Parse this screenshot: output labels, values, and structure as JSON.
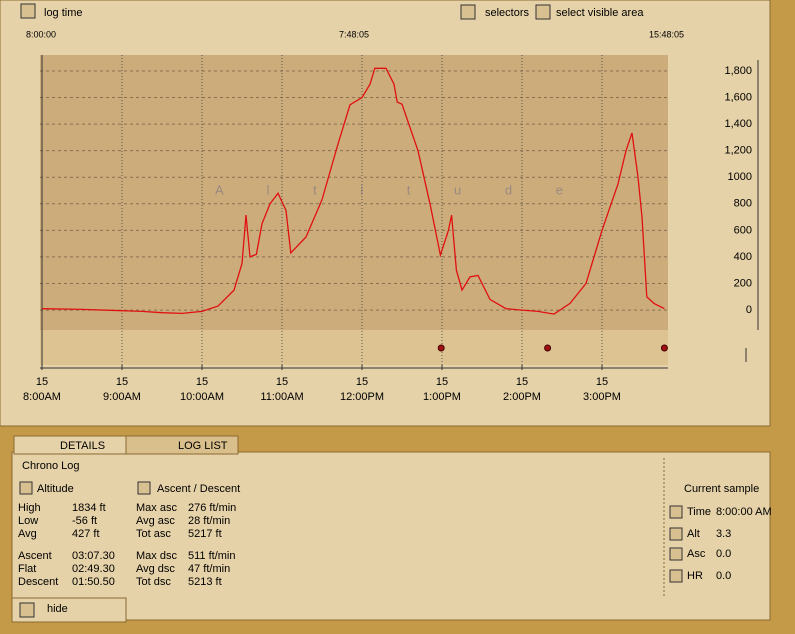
{
  "toolbar": {
    "log_time": "log time",
    "selectors": "selectors",
    "select_visible_area": "select visible area"
  },
  "timeline": {
    "start": "8:00:00",
    "duration": "7:48:05",
    "end": "15:48:05"
  },
  "chart_data": {
    "type": "line",
    "watermark": "A l t i t u d e",
    "color": "#e01010",
    "x": [
      8.0,
      8.5,
      9.0,
      9.25,
      9.5,
      9.75,
      10.0,
      10.2,
      10.4,
      10.5,
      10.55,
      10.6,
      10.68,
      10.75,
      10.85,
      10.95,
      11.05,
      11.11,
      11.3,
      11.5,
      11.7,
      11.85,
      12.0,
      12.1,
      12.16,
      12.3,
      12.4,
      12.44,
      12.5,
      12.7,
      12.85,
      12.98,
      13.08,
      13.12,
      13.18,
      13.25,
      13.35,
      13.45,
      13.6,
      13.8,
      14.0,
      14.2,
      14.4,
      14.6,
      14.8,
      15.0,
      15.2,
      15.3,
      15.375,
      15.45,
      15.5,
      15.56,
      15.65,
      15.78
    ],
    "values": [
      10,
      5,
      -5,
      -10,
      -20,
      -25,
      -10,
      30,
      150,
      350,
      715,
      400,
      420,
      650,
      800,
      880,
      750,
      430,
      550,
      830,
      1250,
      1545,
      1600,
      1700,
      1820,
      1820,
      1700,
      1566,
      1550,
      1200,
      800,
      414,
      600,
      715,
      300,
      150,
      250,
      260,
      80,
      10,
      0,
      -10,
      -30,
      50,
      200,
      600,
      950,
      1200,
      1333,
      1000,
      700,
      100,
      50,
      10
    ],
    "event_markers_x": [
      12.99,
      14.32,
      15.78
    ],
    "marker_color": "#a01010",
    "xlim": [
      8,
      15.8
    ],
    "ylim": [
      -150,
      1920
    ],
    "xticks": [
      {
        "value": 8,
        "label": "8:00AM"
      },
      {
        "value": 9,
        "label": "9:00AM"
      },
      {
        "value": 10,
        "label": "10:00AM"
      },
      {
        "value": 11,
        "label": "11:00AM"
      },
      {
        "value": 12,
        "label": "12:00PM"
      },
      {
        "value": 13,
        "label": "1:00PM"
      },
      {
        "value": 14,
        "label": "2:00PM"
      },
      {
        "value": 15,
        "label": "3:00PM"
      }
    ],
    "xtick_days": [
      "15",
      "15",
      "15",
      "15",
      "15",
      "15",
      "15",
      "15"
    ],
    "yticks": [
      0,
      200,
      400,
      600,
      800,
      1000,
      {
        "value": 1200,
        "label": "1,200"
      },
      {
        "value": 1400,
        "label": "1,400"
      },
      {
        "value": 1600,
        "label": "1,600"
      },
      {
        "value": 1800,
        "label": "1,800"
      }
    ],
    "grid": true
  },
  "tabs": [
    "DETAILS",
    "LOG LIST"
  ],
  "details": {
    "title": "Chrono Log",
    "altitude_header": "Altitude",
    "ascent_header": "Ascent / Descent",
    "left_rows": [
      [
        "High",
        "1834 ft"
      ],
      [
        "Low",
        "-56 ft"
      ],
      [
        "Avg",
        "427 ft"
      ],
      [
        "Ascent",
        "03:07.30"
      ],
      [
        "Flat",
        "02:49.30"
      ],
      [
        "Descent",
        "01:50.50"
      ]
    ],
    "right_rows": [
      [
        "Max asc",
        "276 ft/min"
      ],
      [
        "Avg asc",
        "28 ft/min"
      ],
      [
        "Tot asc",
        "5217 ft"
      ],
      [
        "Max dsc",
        "511 ft/min"
      ],
      [
        "Avg dsc",
        "47 ft/min"
      ],
      [
        "Tot dsc",
        "5213 ft"
      ]
    ]
  },
  "current_sample": {
    "title": "Current sample",
    "rows": [
      [
        "Time",
        "8:00:00 AM"
      ],
      [
        "Alt",
        "3.3"
      ],
      [
        "Asc",
        "0.0"
      ],
      [
        "HR",
        "0.0"
      ]
    ]
  },
  "footer": {
    "hide": "hide"
  }
}
